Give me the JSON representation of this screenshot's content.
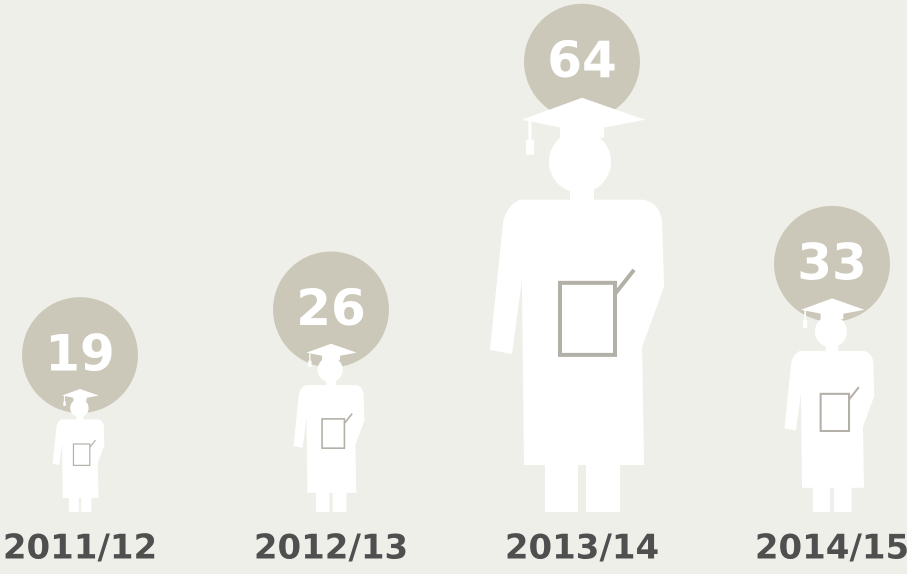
{
  "chart_data": {
    "type": "pictogram",
    "categories": [
      "2011/12",
      "2012/13",
      "2013/14",
      "2014/15"
    ],
    "values": [
      19,
      26,
      64,
      33
    ],
    "color": "#ffffff",
    "badge_color": "#ccc8b9"
  }
}
